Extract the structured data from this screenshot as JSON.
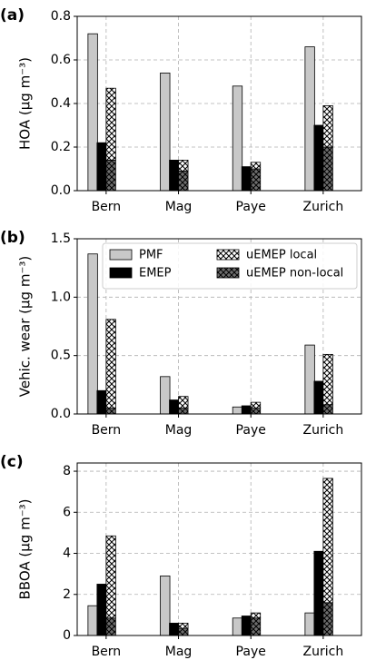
{
  "chart_data": [
    {
      "type": "bar",
      "panel_label": "(a)",
      "ylabel": "HOA (μg m⁻³)",
      "categories": [
        "Bern",
        "Mag",
        "Paye",
        "Zurich"
      ],
      "series": [
        {
          "name": "PMF",
          "color": "#c8c8c8",
          "values": [
            0.72,
            0.54,
            0.48,
            0.66
          ]
        },
        {
          "name": "EMEP",
          "color": "#000000",
          "values": [
            0.22,
            0.14,
            0.11,
            0.3
          ]
        },
        {
          "name": "uEMEP local",
          "color": "#ffffff",
          "hatch": "x",
          "values": [
            0.33,
            0.05,
            0.03,
            0.19
          ]
        },
        {
          "name": "uEMEP non-local",
          "color": "#6e6e6e",
          "hatch": "x",
          "values": [
            0.14,
            0.09,
            0.1,
            0.2
          ]
        }
      ],
      "ylim": [
        0,
        0.8
      ],
      "yticks": [
        {
          "value": 0,
          "label": "0.0"
        },
        0.2,
        0.4,
        0.6,
        0.8
      ],
      "grid": true
    },
    {
      "type": "bar",
      "panel_label": "(b)",
      "ylabel": "Vehic. wear (μg m⁻³)",
      "categories": [
        "Bern",
        "Mag",
        "Paye",
        "Zurich"
      ],
      "series": [
        {
          "name": "PMF",
          "color": "#c8c8c8",
          "values": [
            1.37,
            0.32,
            0.06,
            0.59
          ]
        },
        {
          "name": "EMEP",
          "color": "#000000",
          "values": [
            0.2,
            0.12,
            0.07,
            0.28
          ]
        },
        {
          "name": "uEMEP local",
          "color": "#ffffff",
          "hatch": "x",
          "values": [
            0.76,
            0.1,
            0.05,
            0.43
          ]
        },
        {
          "name": "uEMEP non-local",
          "color": "#6e6e6e",
          "hatch": "x",
          "values": [
            0.05,
            0.05,
            0.05,
            0.08
          ]
        }
      ],
      "ylim": [
        0,
        1.5
      ],
      "yticks": [
        {
          "value": 0,
          "label": "0.0"
        },
        0.5,
        {
          "value": 1,
          "label": "1.0"
        },
        1.5
      ],
      "grid": true,
      "legend": "upper right"
    },
    {
      "type": "bar",
      "panel_label": "(c)",
      "ylabel": "BBOA (μg m⁻³)",
      "categories": [
        "Bern",
        "Mag",
        "Paye",
        "Zurich"
      ],
      "series": [
        {
          "name": "PMF",
          "color": "#c8c8c8",
          "values": [
            1.45,
            2.9,
            0.85,
            1.1
          ]
        },
        {
          "name": "EMEP",
          "color": "#000000",
          "values": [
            2.5,
            0.6,
            0.95,
            4.1
          ]
        },
        {
          "name": "uEMEP local",
          "color": "#ffffff",
          "hatch": "x",
          "values": [
            4.0,
            0.25,
            0.25,
            6.05
          ]
        },
        {
          "name": "uEMEP non-local",
          "color": "#6e6e6e",
          "hatch": "x",
          "values": [
            0.85,
            0.35,
            0.85,
            1.6
          ]
        }
      ],
      "ylim": [
        0,
        8.4
      ],
      "yticks": [
        0,
        2,
        4,
        6,
        8
      ],
      "grid": true
    }
  ]
}
